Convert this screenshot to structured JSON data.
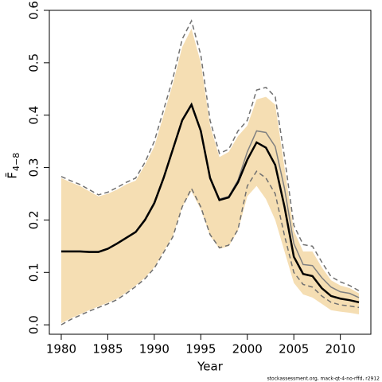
{
  "chart_data": {
    "type": "line",
    "xlabel": "Year",
    "ylabel": "F̄",
    "ylabel_sub": "4−8",
    "footer": "stockassessment.org, mack-qt-4-no-rffd, r2912",
    "x": [
      1980,
      1981,
      1982,
      1983,
      1984,
      1985,
      1986,
      1987,
      1988,
      1989,
      1990,
      1991,
      1992,
      1993,
      1994,
      1995,
      1996,
      1997,
      1998,
      1999,
      2000,
      2001,
      2002,
      2003,
      2004,
      2005,
      2006,
      2007,
      2008,
      2009,
      2010,
      2011,
      2012
    ],
    "band": {
      "color": "#f5deb3",
      "upper": [
        0.28,
        0.272,
        0.265,
        0.255,
        0.245,
        0.25,
        0.258,
        0.268,
        0.275,
        0.305,
        0.34,
        0.4,
        0.46,
        0.53,
        0.565,
        0.5,
        0.38,
        0.32,
        0.33,
        0.36,
        0.38,
        0.43,
        0.435,
        0.42,
        0.3,
        0.18,
        0.14,
        0.14,
        0.11,
        0.085,
        0.075,
        0.07,
        0.06
      ],
      "lower": [
        0.003,
        0.012,
        0.02,
        0.028,
        0.035,
        0.042,
        0.05,
        0.062,
        0.075,
        0.09,
        0.11,
        0.14,
        0.17,
        0.225,
        0.255,
        0.22,
        0.17,
        0.145,
        0.15,
        0.18,
        0.245,
        0.265,
        0.24,
        0.2,
        0.14,
        0.08,
        0.058,
        0.052,
        0.04,
        0.028,
        0.025,
        0.023,
        0.02
      ]
    },
    "series": [
      {
        "color": "#707070",
        "dashed": true,
        "width": 1.5,
        "values": [
          0.283,
          0.275,
          0.268,
          0.258,
          0.248,
          0.253,
          0.262,
          0.272,
          0.28,
          0.31,
          0.35,
          0.41,
          0.47,
          0.545,
          0.58,
          0.515,
          0.39,
          0.327,
          0.335,
          0.37,
          0.39,
          0.448,
          0.453,
          0.435,
          0.32,
          0.19,
          0.153,
          0.15,
          0.12,
          0.092,
          0.082,
          0.075,
          0.065
        ]
      },
      {
        "color": "#707070",
        "dashed": true,
        "width": 1.5,
        "values": [
          0.0,
          0.01,
          0.018,
          0.026,
          0.033,
          0.04,
          0.048,
          0.06,
          0.073,
          0.088,
          0.108,
          0.138,
          0.168,
          0.225,
          0.26,
          0.225,
          0.172,
          0.147,
          0.152,
          0.182,
          0.265,
          0.293,
          0.28,
          0.25,
          0.17,
          0.1,
          0.077,
          0.072,
          0.055,
          0.043,
          0.038,
          0.036,
          0.033
        ]
      },
      {
        "color": "#808080",
        "dashed": false,
        "width": 1.5,
        "values": [
          0.141,
          0.141,
          0.141,
          0.14,
          0.14,
          0.146,
          0.156,
          0.167,
          0.178,
          0.202,
          0.234,
          0.282,
          0.337,
          0.392,
          0.422,
          0.372,
          0.282,
          0.24,
          0.245,
          0.276,
          0.33,
          0.37,
          0.367,
          0.34,
          0.26,
          0.155,
          0.115,
          0.113,
          0.09,
          0.072,
          0.063,
          0.06,
          0.052
        ]
      },
      {
        "color": "#000000",
        "dashed": false,
        "width": 2.5,
        "values": [
          0.14,
          0.14,
          0.14,
          0.139,
          0.139,
          0.145,
          0.155,
          0.166,
          0.177,
          0.2,
          0.232,
          0.28,
          0.335,
          0.39,
          0.42,
          0.37,
          0.28,
          0.238,
          0.243,
          0.272,
          0.315,
          0.348,
          0.338,
          0.305,
          0.225,
          0.13,
          0.097,
          0.093,
          0.07,
          0.055,
          0.05,
          0.047,
          0.043
        ]
      }
    ],
    "xlim": [
      1978.72,
      2013.28
    ],
    "xticks": [
      1980,
      1985,
      1990,
      1995,
      2000,
      2005,
      2010
    ],
    "ylim": [
      -0.018,
      0.6
    ],
    "yticks": [
      {
        "value": 0,
        "label": "0.0"
      },
      0.1,
      0.2,
      0.3,
      0.4,
      0.5,
      0.6
    ]
  }
}
